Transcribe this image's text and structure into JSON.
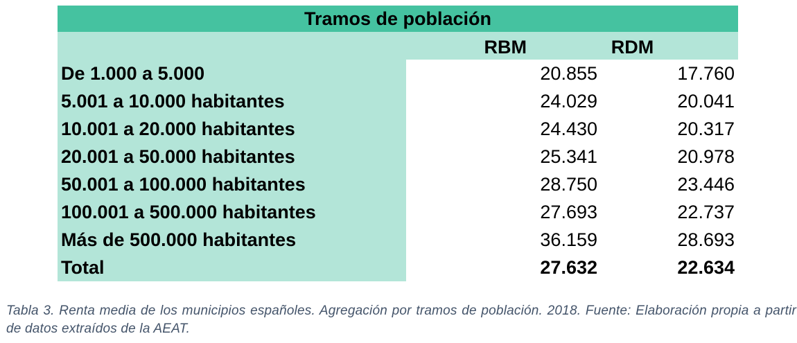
{
  "table": {
    "title": "Tramos de población",
    "columns": [
      "RBM",
      "RDM"
    ],
    "rows": [
      {
        "label": "De 1.000 a 5.000",
        "rbm": "20.855",
        "rdm": "17.760"
      },
      {
        "label": "5.001 a 10.000 habitantes",
        "rbm": "24.029",
        "rdm": "20.041"
      },
      {
        "label": "10.001 a 20.000 habitantes",
        "rbm": "24.430",
        "rdm": "20.317"
      },
      {
        "label": "20.001 a 50.000 habitantes",
        "rbm": "25.341",
        "rdm": "20.978"
      },
      {
        "label": "50.001 a 100.000 habitantes",
        "rbm": "28.750",
        "rdm": "23.446"
      },
      {
        "label": "100.001 a 500.000 habitantes",
        "rbm": "27.693",
        "rdm": "22.737"
      },
      {
        "label": "Más de 500.000 habitantes",
        "rbm": "36.159",
        "rdm": "28.693"
      }
    ],
    "total": {
      "label": "Total",
      "rbm": "27.632",
      "rdm": "22.634"
    }
  },
  "caption": "Tabla 3. Renta media de los municipios españoles. Agregación por tramos de población. 2018. Fuente: Elaboración propia a partir de datos extraídos de la AEAT.",
  "colors": {
    "title_bg": "#45c2a0",
    "label_bg": "#b3e5d8",
    "caption_text": "#44546a"
  }
}
